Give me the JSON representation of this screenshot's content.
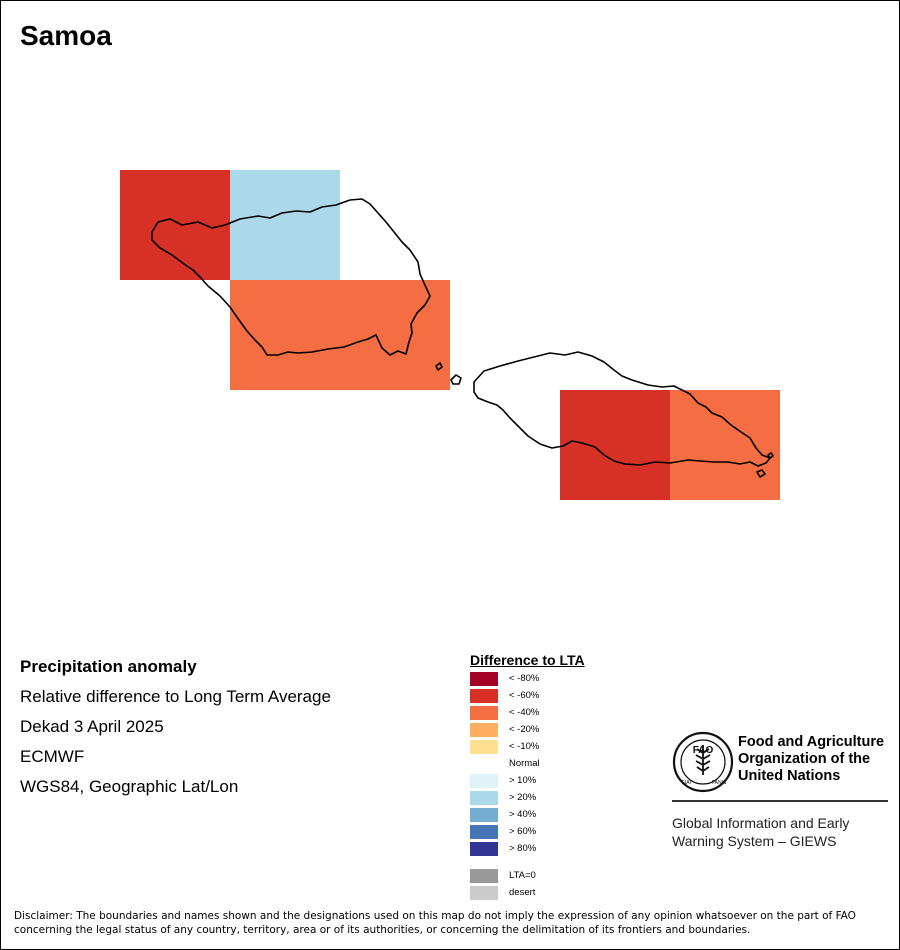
{
  "title": "Samoa",
  "map": {
    "cells": [
      {
        "class": "< -60%",
        "color": "#d73027"
      },
      {
        "class": "> 20%",
        "color": "#abd9e9"
      },
      {
        "class": "< -40%",
        "color": "#f46d43"
      },
      {
        "class": "< -60%",
        "color": "#d73027"
      },
      {
        "class": "< -40%",
        "color": "#f46d43"
      }
    ]
  },
  "info": {
    "heading": "Precipitation anomaly",
    "lines": [
      "Relative difference to Long Term Average",
      "Dekad 3 April 2025",
      "ECMWF",
      "WGS84, Geographic Lat/Lon"
    ]
  },
  "legend": {
    "title": "Difference to LTA",
    "items": [
      {
        "label": "< -80%",
        "color": "#a50026"
      },
      {
        "label": "< -60%",
        "color": "#d73027"
      },
      {
        "label": "< -40%",
        "color": "#f46d43"
      },
      {
        "label": "< -20%",
        "color": "#fdae61"
      },
      {
        "label": "< -10%",
        "color": "#fee090"
      },
      {
        "label": "Normal",
        "color": "#ffffff"
      },
      {
        "label": "> 10%",
        "color": "#e0f3f8"
      },
      {
        "label": "> 20%",
        "color": "#abd9e9"
      },
      {
        "label": "> 40%",
        "color": "#74add1"
      },
      {
        "label": "> 60%",
        "color": "#4575b4"
      },
      {
        "label": "> 80%",
        "color": "#313695"
      },
      {
        "label": "LTA=0",
        "color": "#999999"
      },
      {
        "label": "desert",
        "color": "#cccccc"
      }
    ]
  },
  "logo": {
    "org_lines": [
      "Food and Agriculture",
      "Organization of the",
      "United Nations"
    ],
    "emblem_text": "FAO",
    "motto_left": "FIAT",
    "motto_right": "PANIS",
    "program_lines": [
      "Global Information and Early",
      "Warning System – GIEWS"
    ]
  },
  "disclaimer": "Disclaimer: The boundaries and names shown and the designations used on this map do not imply the expression of any opinion whatsoever on the part of FAO concerning the legal status of any country, territory, area or of its authorities, or concerning the delimitation of its frontiers and boundaries."
}
